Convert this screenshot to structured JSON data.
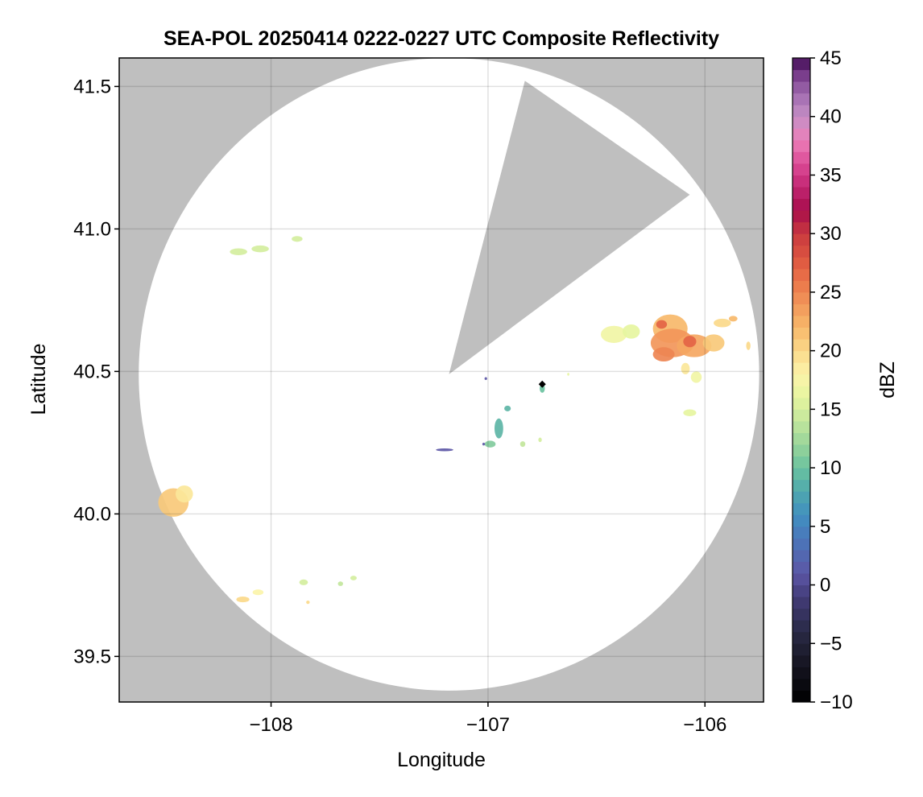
{
  "chart_data": {
    "type": "heatmap",
    "title": "SEA-POL 20250414 0222-0227 UTC Composite Reflectivity",
    "xlabel": "Longitude",
    "ylabel": "Latitude",
    "xlim": [
      -108.7,
      -105.73
    ],
    "ylim": [
      39.34,
      41.6
    ],
    "xticks": [
      -108,
      -107,
      -106
    ],
    "xtick_labels": [
      "−108",
      "−107",
      "−106"
    ],
    "yticks": [
      39.5,
      40.0,
      40.5,
      41.0,
      41.5
    ],
    "ytick_labels": [
      "39.5",
      "40.0",
      "40.5",
      "41.0",
      "41.5"
    ],
    "grid": true,
    "background_color": "#bfbfbf",
    "radar_coverage": {
      "center": [
        -107.18,
        40.49
      ],
      "radius_deg_lon": 1.43,
      "radius_deg_lat": 1.11,
      "blocked_sector": {
        "corners": [
          [
            -107.18,
            40.49
          ],
          [
            -106.83,
            41.52
          ],
          [
            -106.07,
            41.12
          ]
        ],
        "color": "#bfbfbf"
      }
    },
    "radar_marker": [
      -106.75,
      40.455
    ],
    "colorbar": {
      "label": "dBZ",
      "min": -10,
      "max": 45,
      "ticks": [
        45,
        40,
        35,
        30,
        25,
        20,
        15,
        10,
        5,
        0,
        -5,
        -10
      ],
      "tick_labels": [
        "45",
        "40",
        "35",
        "30",
        "25",
        "20",
        "15",
        "10",
        "5",
        "0",
        "−5",
        "−10"
      ],
      "stops": [
        [
          -10,
          "#000000"
        ],
        [
          -7,
          "#14131f"
        ],
        [
          -4,
          "#292a45"
        ],
        [
          -1,
          "#433c78"
        ],
        [
          1,
          "#5c57a6"
        ],
        [
          4,
          "#4a77ba"
        ],
        [
          6,
          "#4190c0"
        ],
        [
          8,
          "#4fa8ad"
        ],
        [
          10,
          "#6ac29f"
        ],
        [
          12,
          "#99d49a"
        ],
        [
          14,
          "#c2e69c"
        ],
        [
          16,
          "#e6f59f"
        ],
        [
          18,
          "#fbf4aa"
        ],
        [
          20,
          "#fbd98a"
        ],
        [
          22,
          "#f7b86a"
        ],
        [
          24,
          "#f2965a"
        ],
        [
          26,
          "#ea7449"
        ],
        [
          28,
          "#dc5440"
        ],
        [
          30,
          "#c9393f"
        ],
        [
          32,
          "#a70d4b"
        ],
        [
          34,
          "#c22673"
        ],
        [
          36,
          "#dc4b97"
        ],
        [
          38,
          "#ec7fb8"
        ],
        [
          40,
          "#c58fc6"
        ],
        [
          42,
          "#9f6aaf"
        ],
        [
          44,
          "#6d2f80"
        ],
        [
          45,
          "#3d0a50"
        ]
      ]
    },
    "echo_cells": [
      {
        "lon": -108.45,
        "lat": 40.04,
        "rlon": 0.07,
        "rlat": 0.05,
        "dbz": 21
      },
      {
        "lon": -108.4,
        "lat": 40.07,
        "rlon": 0.04,
        "rlat": 0.03,
        "dbz": 19
      },
      {
        "lon": -108.15,
        "lat": 40.92,
        "rlon": 0.04,
        "rlat": 0.012,
        "dbz": 15
      },
      {
        "lon": -108.05,
        "lat": 40.93,
        "rlon": 0.04,
        "rlat": 0.012,
        "dbz": 15
      },
      {
        "lon": -107.88,
        "lat": 40.965,
        "rlon": 0.025,
        "rlat": 0.01,
        "dbz": 15
      },
      {
        "lon": -108.13,
        "lat": 39.7,
        "rlon": 0.03,
        "rlat": 0.01,
        "dbz": 20
      },
      {
        "lon": -108.06,
        "lat": 39.725,
        "rlon": 0.025,
        "rlat": 0.01,
        "dbz": 18
      },
      {
        "lon": -107.85,
        "lat": 39.76,
        "rlon": 0.02,
        "rlat": 0.01,
        "dbz": 15
      },
      {
        "lon": -107.83,
        "lat": 39.69,
        "rlon": 0.008,
        "rlat": 0.006,
        "dbz": 20
      },
      {
        "lon": -107.68,
        "lat": 39.755,
        "rlon": 0.012,
        "rlat": 0.008,
        "dbz": 14
      },
      {
        "lon": -107.62,
        "lat": 39.775,
        "rlon": 0.015,
        "rlat": 0.008,
        "dbz": 15
      },
      {
        "lon": -106.42,
        "lat": 40.63,
        "rlon": 0.06,
        "rlat": 0.03,
        "dbz": 17
      },
      {
        "lon": -106.34,
        "lat": 40.64,
        "rlon": 0.04,
        "rlat": 0.025,
        "dbz": 16
      },
      {
        "lon": -106.16,
        "lat": 40.65,
        "rlon": 0.08,
        "rlat": 0.05,
        "dbz": 22
      },
      {
        "lon": -106.15,
        "lat": 40.6,
        "rlon": 0.1,
        "rlat": 0.05,
        "dbz": 24
      },
      {
        "lon": -106.05,
        "lat": 40.59,
        "rlon": 0.08,
        "rlat": 0.04,
        "dbz": 23
      },
      {
        "lon": -106.19,
        "lat": 40.56,
        "rlon": 0.05,
        "rlat": 0.025,
        "dbz": 25
      },
      {
        "lon": -106.07,
        "lat": 40.605,
        "rlon": 0.03,
        "rlat": 0.02,
        "dbz": 27
      },
      {
        "lon": -106.2,
        "lat": 40.665,
        "rlon": 0.025,
        "rlat": 0.015,
        "dbz": 27
      },
      {
        "lon": -105.96,
        "lat": 40.6,
        "rlon": 0.05,
        "rlat": 0.03,
        "dbz": 21
      },
      {
        "lon": -105.92,
        "lat": 40.67,
        "rlon": 0.04,
        "rlat": 0.015,
        "dbz": 20
      },
      {
        "lon": -105.87,
        "lat": 40.685,
        "rlon": 0.02,
        "rlat": 0.01,
        "dbz": 22
      },
      {
        "lon": -105.8,
        "lat": 40.59,
        "rlon": 0.01,
        "rlat": 0.015,
        "dbz": 20
      },
      {
        "lon": -106.04,
        "lat": 40.48,
        "rlon": 0.025,
        "rlat": 0.02,
        "dbz": 17
      },
      {
        "lon": -106.09,
        "lat": 40.51,
        "rlon": 0.02,
        "rlat": 0.02,
        "dbz": 19
      },
      {
        "lon": -106.07,
        "lat": 40.355,
        "rlon": 0.03,
        "rlat": 0.012,
        "dbz": 16
      },
      {
        "lon": -106.75,
        "lat": 40.44,
        "rlon": 0.012,
        "rlat": 0.015,
        "dbz": 10
      },
      {
        "lon": -106.91,
        "lat": 40.37,
        "rlon": 0.015,
        "rlat": 0.01,
        "dbz": 9
      },
      {
        "lon": -106.95,
        "lat": 40.3,
        "rlon": 0.02,
        "rlat": 0.035,
        "dbz": 9
      },
      {
        "lon": -106.99,
        "lat": 40.245,
        "rlon": 0.025,
        "rlat": 0.012,
        "dbz": 11
      },
      {
        "lon": -106.84,
        "lat": 40.245,
        "rlon": 0.012,
        "rlat": 0.01,
        "dbz": 14
      },
      {
        "lon": -106.76,
        "lat": 40.26,
        "rlon": 0.008,
        "rlat": 0.008,
        "dbz": 15
      },
      {
        "lon": -107.2,
        "lat": 40.225,
        "rlon": 0.04,
        "rlat": 0.005,
        "dbz": 1
      },
      {
        "lon": -107.02,
        "lat": 40.245,
        "rlon": 0.006,
        "rlat": 0.005,
        "dbz": 1
      },
      {
        "lon": -107.01,
        "lat": 40.475,
        "rlon": 0.006,
        "rlat": 0.005,
        "dbz": 1
      },
      {
        "lon": -106.63,
        "lat": 40.49,
        "rlon": 0.005,
        "rlat": 0.005,
        "dbz": 16
      }
    ]
  }
}
